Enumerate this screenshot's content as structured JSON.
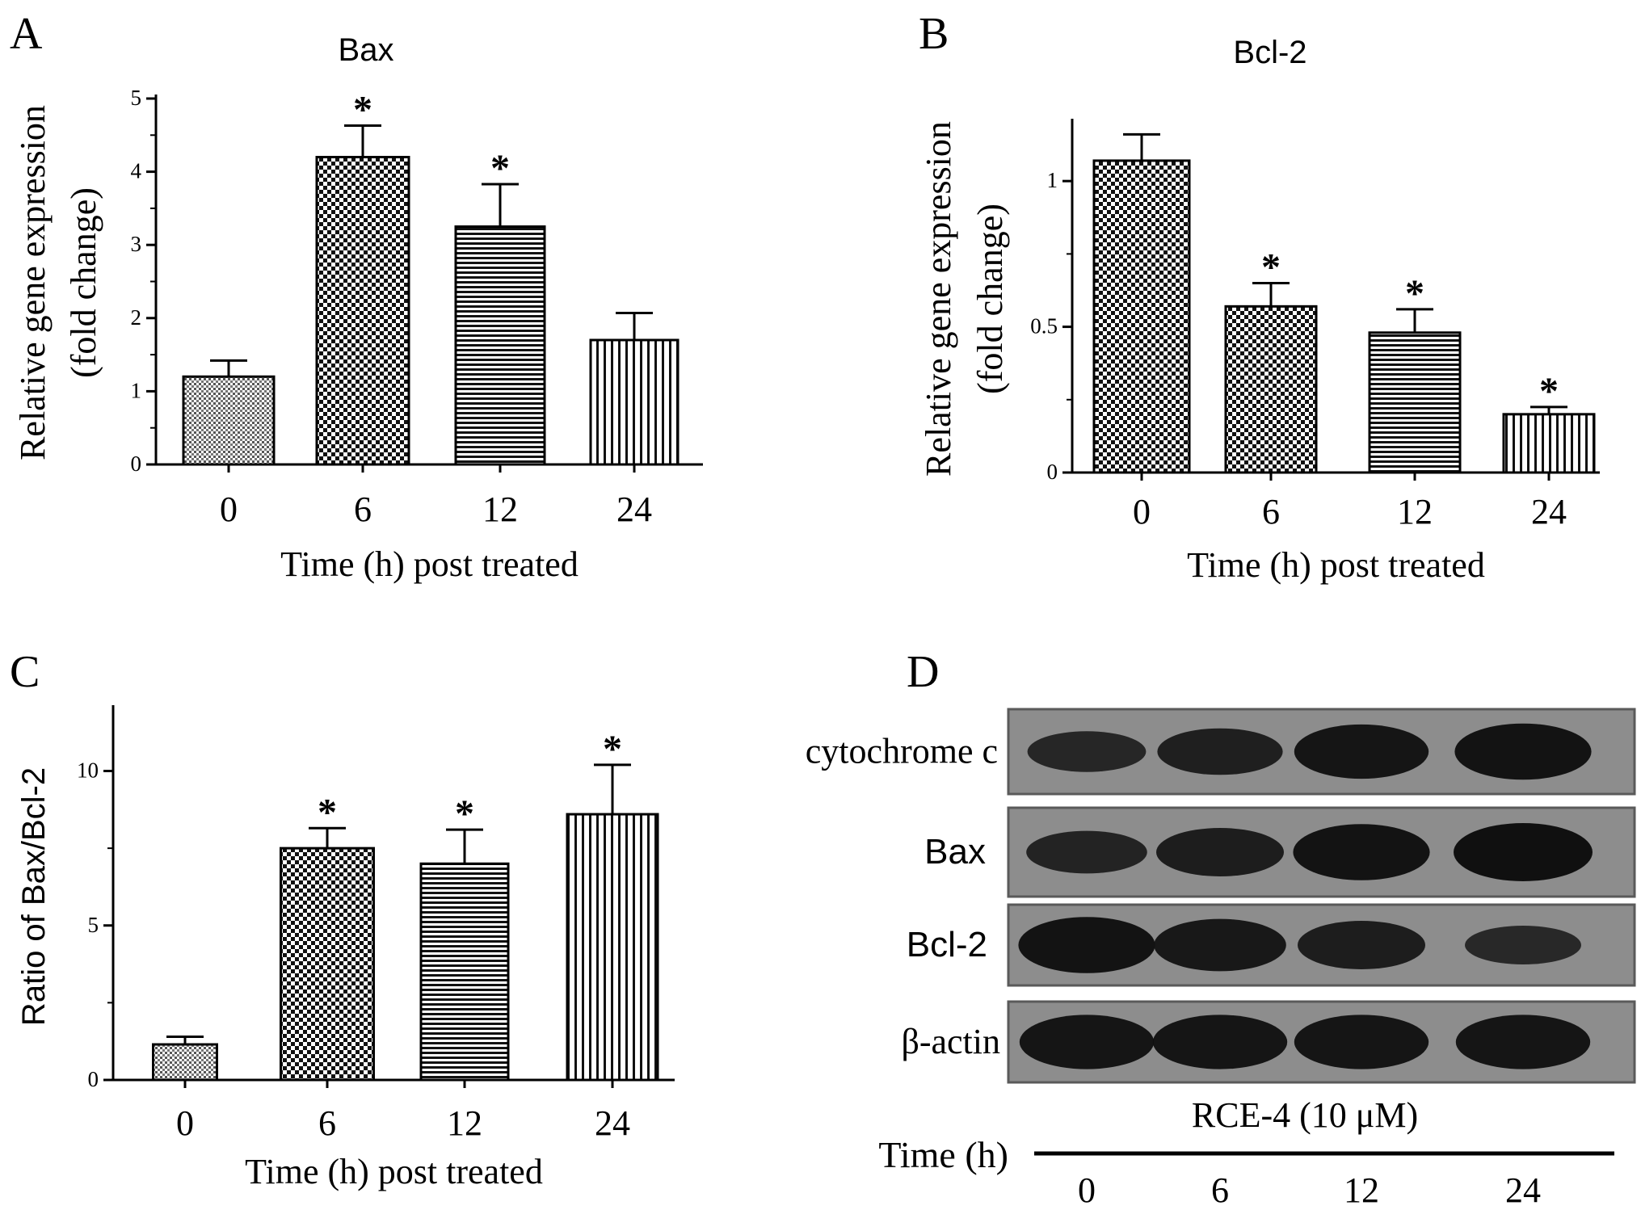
{
  "chart_data": [
    {
      "panel": "A",
      "type": "bar",
      "title": "Bax",
      "xlabel": "Time (h) post treated",
      "ylabel_lines": [
        "Relative gene expression",
        "(fold change)"
      ],
      "categories": [
        "0",
        "6",
        "12",
        "24"
      ],
      "values": [
        1.2,
        4.2,
        3.25,
        1.7
      ],
      "errors": [
        0.22,
        0.43,
        0.58,
        0.37
      ],
      "significant": [
        false,
        true,
        true,
        false
      ],
      "sig_marker": "*",
      "ylim": [
        0,
        5
      ],
      "yticks": [
        "0",
        "1",
        "2",
        "3",
        "4",
        "5"
      ],
      "patterns": [
        "dots",
        "checker",
        "hlines",
        "vlines"
      ]
    },
    {
      "panel": "B",
      "type": "bar",
      "title": "Bcl-2",
      "xlabel": "Time (h) post treated",
      "ylabel_lines": [
        "Relative gene expression",
        "(fold change)"
      ],
      "categories": [
        "0",
        "6",
        "12",
        "24"
      ],
      "values": [
        1.07,
        0.57,
        0.48,
        0.2
      ],
      "errors": [
        0.09,
        0.08,
        0.08,
        0.025
      ],
      "significant": [
        false,
        true,
        true,
        true
      ],
      "sig_marker": "*",
      "ylim": [
        0,
        1.2
      ],
      "ytick_values": [
        0,
        0.5,
        1
      ],
      "yticks": [
        "0",
        "0.5",
        "1"
      ],
      "patterns": [
        "checker",
        "checker",
        "hlines",
        "vlines"
      ]
    },
    {
      "panel": "C",
      "type": "bar",
      "title": "",
      "xlabel": "Time (h) post treated",
      "ylabel_lines": [
        "Ratio of Bax/Bcl-2"
      ],
      "categories": [
        "0",
        "6",
        "12",
        "24"
      ],
      "values": [
        1.15,
        7.5,
        7.0,
        8.6
      ],
      "errors": [
        0.25,
        0.65,
        1.1,
        1.6
      ],
      "significant": [
        false,
        true,
        true,
        true
      ],
      "sig_marker": "*",
      "ylim": [
        0,
        12
      ],
      "ytick_values": [
        0,
        5,
        10
      ],
      "yticks": [
        "0",
        "5",
        "10"
      ],
      "patterns": [
        "dots",
        "checker",
        "hlines",
        "vlines"
      ]
    }
  ],
  "blot": {
    "panel": "D",
    "rows": [
      "cytochrome c",
      "Bax",
      "Bcl-2",
      "β-actin"
    ],
    "band_intensity": [
      [
        0.55,
        0.7,
        0.9,
        0.95
      ],
      [
        0.6,
        0.75,
        0.95,
        1.0
      ],
      [
        0.95,
        0.85,
        0.75,
        0.5
      ],
      [
        0.9,
        0.9,
        0.9,
        0.9
      ]
    ],
    "treatment_label": "RCE-4 (10 μM)",
    "time_label": "Time (h)",
    "lanes": [
      "0",
      "6",
      "12",
      "24"
    ]
  }
}
